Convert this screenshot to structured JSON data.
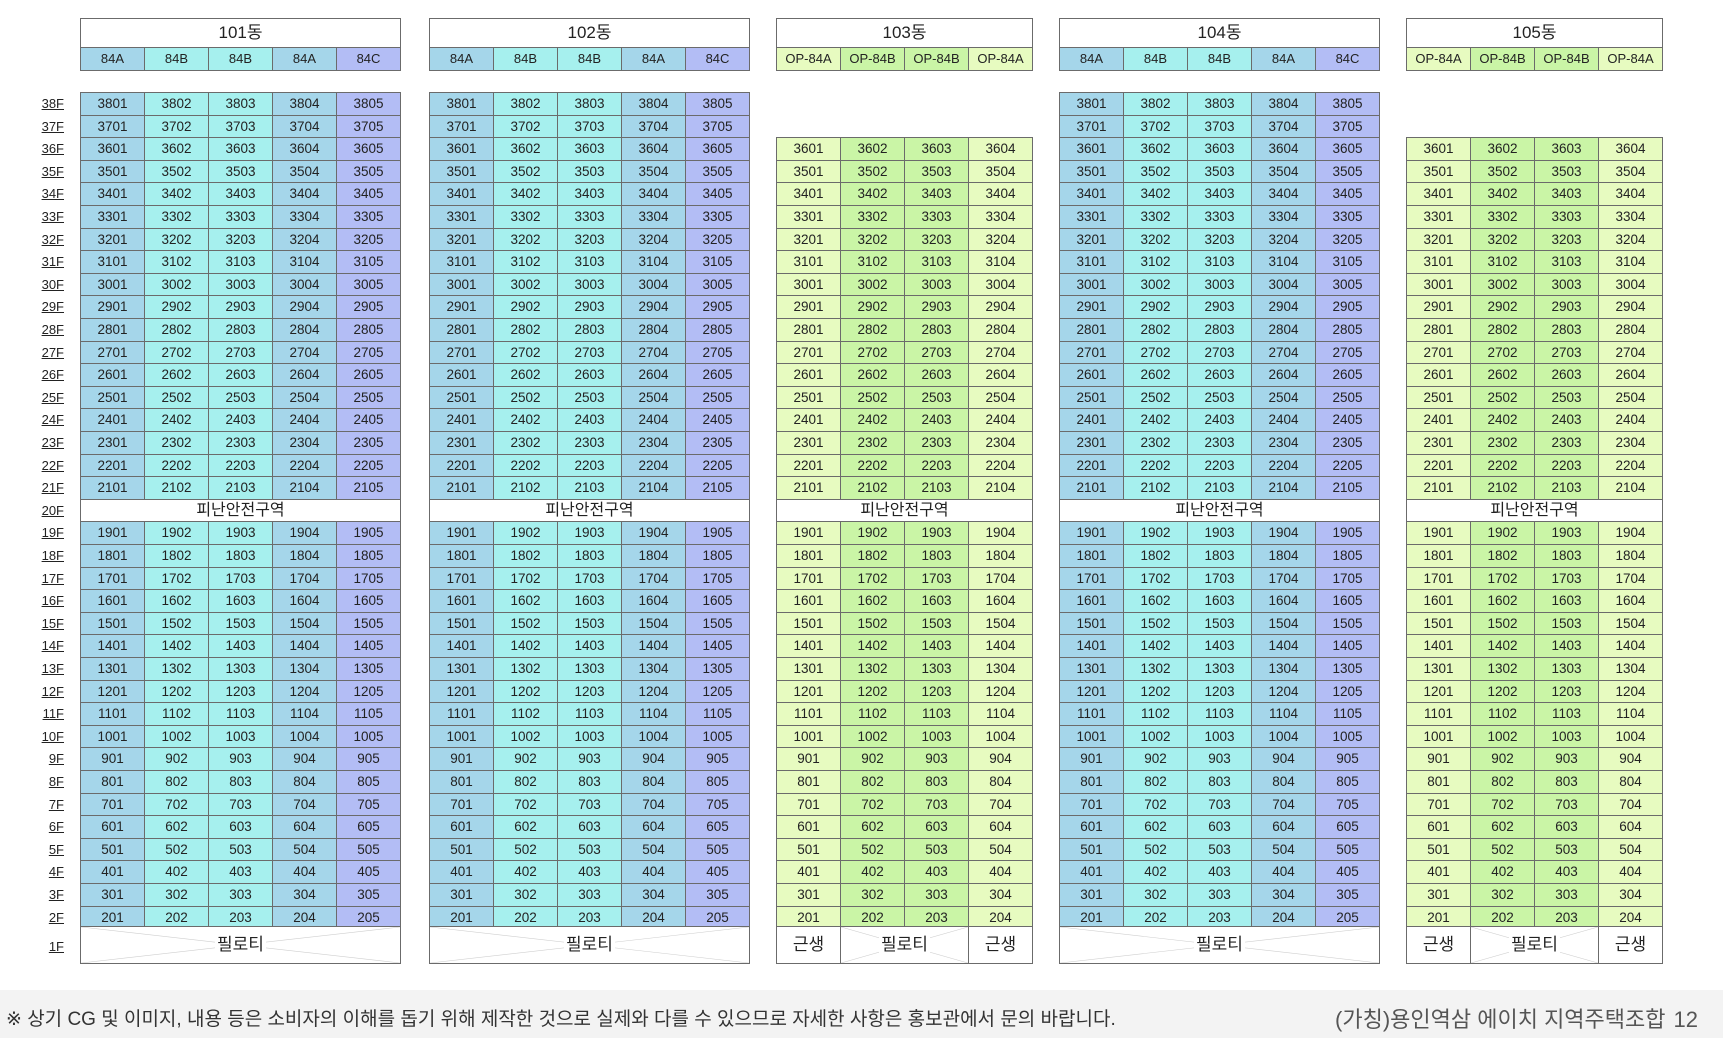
{
  "floors": [
    "38F",
    "37F",
    "36F",
    "35F",
    "34F",
    "33F",
    "32F",
    "31F",
    "30F",
    "29F",
    "28F",
    "27F",
    "26F",
    "25F",
    "24F",
    "23F",
    "22F",
    "21F",
    "20F",
    "19F",
    "18F",
    "17F",
    "16F",
    "15F",
    "14F",
    "13F",
    "12F",
    "11F",
    "10F",
    "9F",
    "8F",
    "7F",
    "6F",
    "5F",
    "4F",
    "3F",
    "2F",
    "1F"
  ],
  "buildings": [
    {
      "name": "101동",
      "types": [
        "84A",
        "84B",
        "84B",
        "84A",
        "84C"
      ],
      "top_floor": 38,
      "units": [
        "01",
        "02",
        "03",
        "04",
        "05"
      ],
      "refuge_label": "피난안전구역",
      "ground": [
        "필로티"
      ]
    },
    {
      "name": "102동",
      "types": [
        "84A",
        "84B",
        "84B",
        "84A",
        "84C"
      ],
      "top_floor": 38,
      "units": [
        "01",
        "02",
        "03",
        "04",
        "05"
      ],
      "refuge_label": "피난안전구역",
      "ground": [
        "필로티"
      ]
    },
    {
      "name": "103동",
      "types": [
        "OP-84A",
        "OP-84B",
        "OP-84B",
        "OP-84A"
      ],
      "top_floor": 36,
      "units": [
        "01",
        "02",
        "03",
        "04"
      ],
      "refuge_label": "피난안전구역",
      "ground": [
        "근생",
        "필로티",
        "근생"
      ]
    },
    {
      "name": "104동",
      "types": [
        "84A",
        "84B",
        "84B",
        "84A",
        "84C"
      ],
      "top_floor": 38,
      "units": [
        "01",
        "02",
        "03",
        "04",
        "05"
      ],
      "refuge_label": "피난안전구역",
      "ground": [
        "필로티"
      ]
    },
    {
      "name": "105동",
      "types": [
        "OP-84A",
        "OP-84B",
        "OP-84B",
        "OP-84A"
      ],
      "top_floor": 36,
      "units": [
        "01",
        "02",
        "03",
        "04"
      ],
      "refuge_label": "피난안전구역",
      "ground": [
        "근생",
        "필로티",
        "근생"
      ]
    }
  ],
  "refuge_floor": 20,
  "colors": {
    "84A": "#a5d6ea",
    "84B": "#a6f0ee",
    "84C": "#b3bdf5",
    "OP-84A": "#e7fbc0",
    "OP-84B": "#caf5a6"
  },
  "footer": {
    "note": "※ 상기 CG 및 이미지, 내용 등은 소비자의 이해를 돕기 위해 제작한 것으로 실제와 다를 수 있으므로 자세한 사항은 홍보관에서 문의 바랍니다.",
    "title": "(가칭)용인역삼 에이치 지역주택조합",
    "page": "12"
  }
}
